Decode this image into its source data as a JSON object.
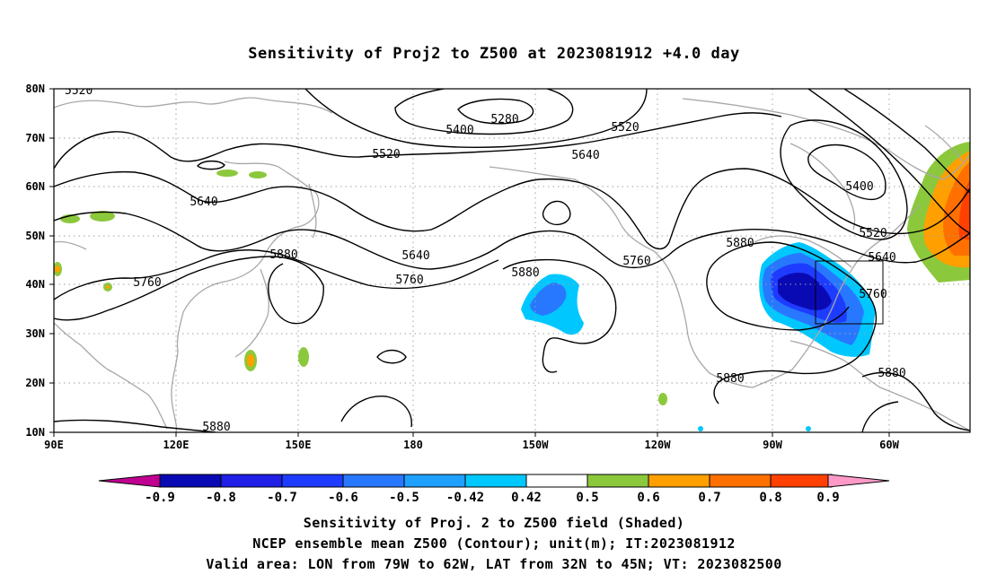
{
  "title": "Sensitivity of Proj2 to Z500 at 2023081912 +4.0 day",
  "axes": {
    "lat_labels": [
      "80N",
      "70N",
      "60N",
      "50N",
      "40N",
      "30N",
      "20N",
      "10N"
    ],
    "lon_labels": [
      "90E",
      "120E",
      "150E",
      "180",
      "150W",
      "120W",
      "90W",
      "60W"
    ]
  },
  "contour_labels": [
    "5520",
    "5280",
    "5400",
    "5520",
    "5520",
    "5640",
    "5400",
    "5640",
    "5520",
    "5880",
    "5640",
    "5640",
    "5760",
    "5880",
    "5760",
    "5760",
    "5880",
    "5760",
    "5880",
    "5880",
    "5880"
  ],
  "colorbar": {
    "labels": [
      "-0.9",
      "-0.8",
      "-0.7",
      "-0.6",
      "-0.5",
      "-0.42",
      "0.42",
      "0.5",
      "0.6",
      "0.7",
      "0.8",
      "0.9"
    ],
    "colors": [
      "#c00090",
      "#0a0ab4",
      "#1f1fe6",
      "#1e3cff",
      "#2878ff",
      "#1ea0ff",
      "#00c8ff",
      "#ffffff",
      "#8cc83c",
      "#ffa000",
      "#ff7000",
      "#ff4000",
      "#ff0000",
      "#ff9ac8"
    ]
  },
  "footer": {
    "line1": "Sensitivity of Proj. 2 to Z500 field (Shaded)",
    "line2": "NCEP ensemble mean Z500 (Contour); unit(m); IT:2023081912",
    "line3": "Valid area: LON from 79W to 62W, LAT from 32N to 45N; VT: 2023082500"
  }
}
